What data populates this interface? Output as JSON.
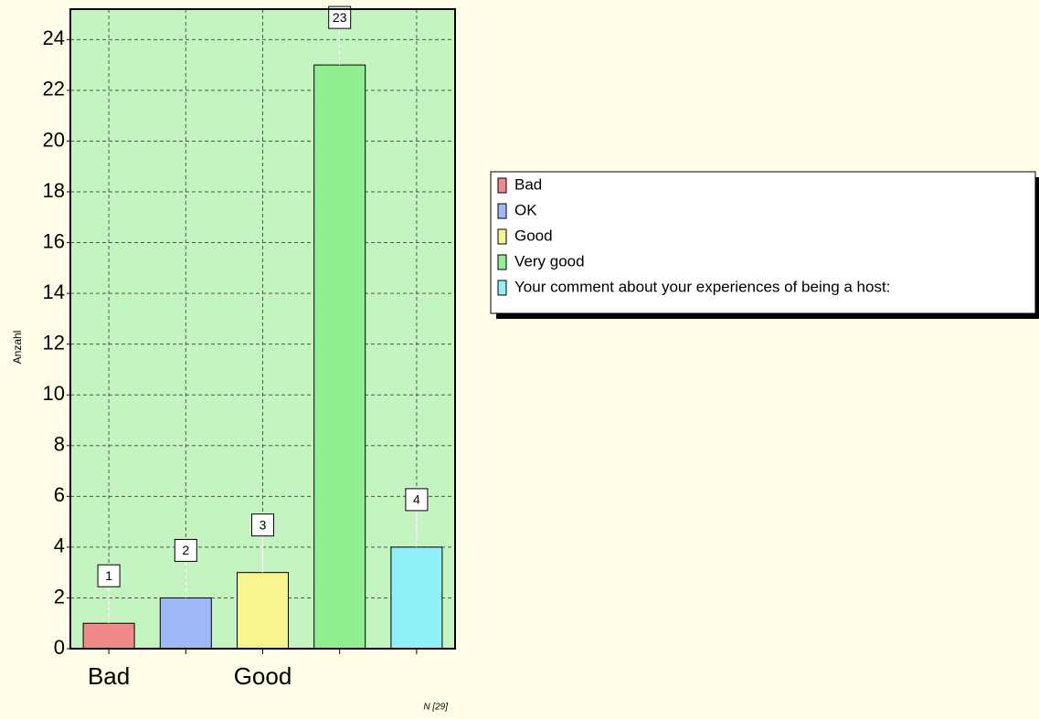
{
  "chart_data": {
    "type": "bar",
    "y_label": "Anzahl",
    "note": "N [29]",
    "categories": [
      "Bad",
      null,
      "Good",
      null,
      null
    ],
    "values": [
      1,
      2,
      3,
      23,
      4
    ],
    "colors": [
      "#f08a8a",
      "#a0b8f5",
      "#f8f590",
      "#90f090",
      "#90f0f8"
    ],
    "legend": [
      "Bad",
      "OK",
      "Good",
      "Very good",
      "Your comment about your experiences of being a host:"
    ],
    "ylim": [
      0,
      25.2
    ],
    "yticks": [
      0,
      2,
      4,
      6,
      8,
      10,
      12,
      14,
      16,
      18,
      20,
      22,
      24
    ],
    "grid": true
  }
}
